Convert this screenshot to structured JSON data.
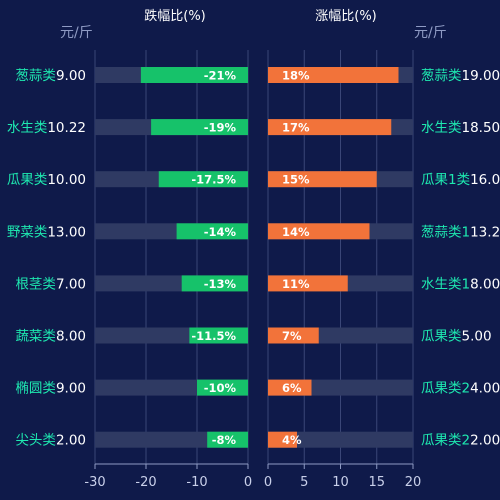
{
  "chart_data": [
    {
      "type": "bar",
      "orientation": "horizontal",
      "title": "跌幅比(%)",
      "unit_label": "元/斤",
      "xlim": [
        -30,
        0
      ],
      "x_ticks": [
        -30,
        -20,
        -10,
        0
      ],
      "background_track_min": -30,
      "bar_color": "#16c26a",
      "grid": true,
      "categories": [
        "葱蒜类",
        "水生类",
        "瓜果类",
        "野菜类",
        "根茎类",
        "蔬菜类",
        "椭圆类",
        "尖头类"
      ],
      "prices": [
        "9.00",
        "10.22",
        "10.00",
        "13.00",
        "7.00",
        "8.00",
        "9.00",
        "2.00"
      ],
      "values": [
        -21,
        -19,
        -17.5,
        -14,
        -13,
        -11.5,
        -10,
        -8
      ],
      "value_labels": [
        "-21%",
        "-19%",
        "-17.5%",
        "-14%",
        "-13%",
        "-11.5%",
        "-10%",
        "-8%"
      ]
    },
    {
      "type": "bar",
      "orientation": "horizontal",
      "title": "涨幅比(%)",
      "unit_label": "元/斤",
      "xlim": [
        0,
        20
      ],
      "x_ticks": [
        0,
        5,
        10,
        15,
        20
      ],
      "background_track_max": 20,
      "bar_color": "#f2733a",
      "grid": true,
      "categories": [
        "葱蒜类",
        "水生类",
        "瓜果1类",
        "葱蒜类1",
        "水生类1",
        "瓜果类",
        "瓜果类2",
        "瓜果类2"
      ],
      "prices": [
        "19.00",
        "18.50",
        "16.0",
        "13.2",
        "8.00",
        "5.00",
        "4.00",
        "2.00"
      ],
      "values": [
        18,
        17,
        15,
        14,
        11,
        7,
        6,
        4
      ],
      "value_labels": [
        "18%",
        "17%",
        "15%",
        "14%",
        "11%",
        "7%",
        "6%",
        "4%"
      ]
    }
  ],
  "colors": {
    "background": "#0f1a4a",
    "track": "#2f3a63",
    "grid": "#3a4677",
    "category_text": "#1ee8b0",
    "price_text": "#ffffff"
  }
}
